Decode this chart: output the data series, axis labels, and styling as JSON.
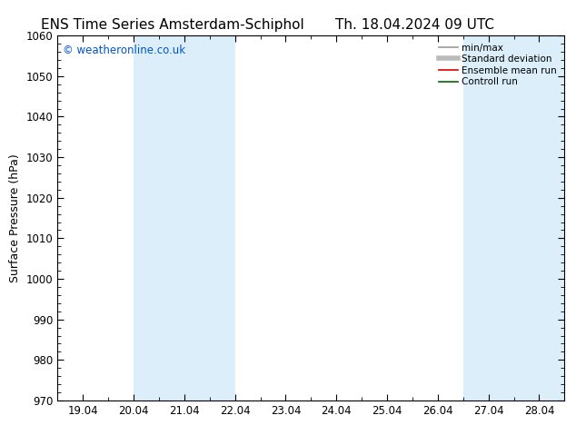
{
  "title_left": "ENS Time Series Amsterdam-Schiphol",
  "title_right": "Th. 18.04.2024 09 UTC",
  "ylabel": "Surface Pressure (hPa)",
  "ylim": [
    970,
    1060
  ],
  "yticks": [
    970,
    980,
    990,
    1000,
    1010,
    1020,
    1030,
    1040,
    1050,
    1060
  ],
  "xtick_labels": [
    "19.04",
    "20.04",
    "21.04",
    "22.04",
    "23.04",
    "24.04",
    "25.04",
    "26.04",
    "27.04",
    "28.04"
  ],
  "xtick_positions": [
    0,
    1,
    2,
    3,
    4,
    5,
    6,
    7,
    8,
    9
  ],
  "xlim": [
    -0.5,
    9.5
  ],
  "shaded_regions": [
    {
      "x_start": 1.0,
      "x_end": 1.5,
      "color": "#dceefa"
    },
    {
      "x_start": 1.5,
      "x_end": 2.5,
      "color": "#dceefa"
    },
    {
      "x_start": 2.5,
      "x_end": 3.0,
      "color": "#dceefa"
    },
    {
      "x_start": 7.5,
      "x_end": 8.0,
      "color": "#dceefa"
    },
    {
      "x_start": 8.0,
      "x_end": 8.5,
      "color": "#dceefa"
    },
    {
      "x_start": 8.5,
      "x_end": 9.5,
      "color": "#dceefa"
    }
  ],
  "watermark_text": "© weatheronline.co.uk",
  "watermark_color": "#0055cc",
  "legend_entries": [
    {
      "label": "min/max",
      "color": "#999999",
      "lw": 1.2,
      "ls": "-"
    },
    {
      "label": "Standard deviation",
      "color": "#bbbbbb",
      "lw": 4,
      "ls": "-"
    },
    {
      "label": "Ensemble mean run",
      "color": "#dd0000",
      "lw": 1.2,
      "ls": "-"
    },
    {
      "label": "Controll run",
      "color": "#006600",
      "lw": 1.2,
      "ls": "-"
    }
  ],
  "bg_color": "#ffffff",
  "plot_bg_color": "#ffffff",
  "spine_color": "#000000",
  "tick_color": "#000000",
  "title_fontsize": 11,
  "axis_label_fontsize": 9,
  "tick_fontsize": 8.5,
  "watermark_fontsize": 8.5,
  "legend_fontsize": 7.5
}
